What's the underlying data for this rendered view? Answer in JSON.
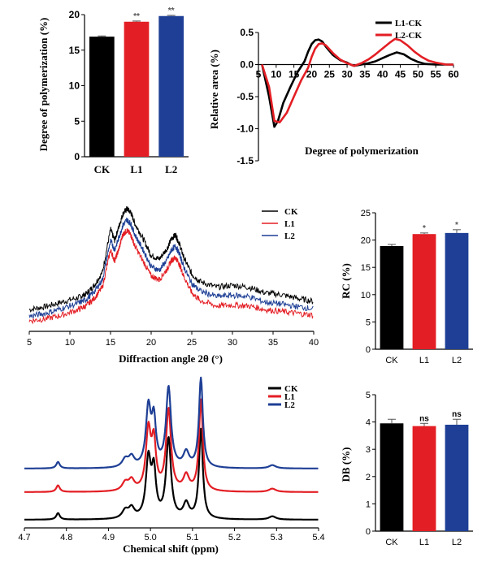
{
  "colors": {
    "CK": "#000000",
    "L1": "#e31e24",
    "L2": "#1e3f95"
  },
  "chart_data": [
    {
      "type": "bar",
      "categories": [
        "CK",
        "L1",
        "L2"
      ],
      "values": [
        16.9,
        19.0,
        19.8
      ],
      "errors": [
        0.1,
        0.1,
        0.1
      ],
      "significance": [
        "",
        "**",
        "**"
      ],
      "ylabel": "Degree of polymerization (%)",
      "ylim": [
        0,
        20
      ],
      "yticks": [
        "0",
        "5",
        "10",
        "15",
        "20"
      ]
    },
    {
      "type": "line",
      "xlabel": "Degree of polymerization",
      "ylabel": "Relative area (%)",
      "xlim": [
        5,
        60
      ],
      "ylim": [
        -1.5,
        0.5
      ],
      "xticks": [
        "5",
        "10",
        "15",
        "20",
        "25",
        "30",
        "35",
        "40",
        "45",
        "50",
        "55",
        "60"
      ],
      "yticks": [
        "0.5",
        "0.0",
        "-0.5",
        "-1.0",
        "-1.5"
      ],
      "legend": "top-right",
      "series": [
        {
          "name": "L1-CK",
          "color": "#000000",
          "x": [
            6,
            8,
            9.5,
            10.5,
            12,
            14,
            16,
            18,
            19,
            20,
            21,
            22,
            23,
            24,
            26,
            28,
            30,
            31,
            32,
            34,
            36,
            38,
            40,
            42,
            44,
            46,
            48,
            50,
            52,
            55,
            58,
            60
          ],
          "y": [
            0.0,
            -0.5,
            -0.97,
            -0.88,
            -0.6,
            -0.35,
            -0.12,
            0.05,
            0.2,
            0.32,
            0.38,
            0.39,
            0.36,
            0.28,
            0.15,
            0.07,
            0.03,
            0.0,
            -0.02,
            0.0,
            0.02,
            0.05,
            0.1,
            0.15,
            0.19,
            0.16,
            0.09,
            0.04,
            0.01,
            0.0,
            0.0,
            0.0
          ]
        },
        {
          "name": "L2-CK",
          "color": "#e31e24",
          "x": [
            6,
            8,
            9.5,
            11,
            13,
            15,
            17,
            19,
            20,
            21,
            22,
            23,
            24,
            26,
            28,
            30,
            31,
            32,
            34,
            36,
            38,
            40,
            42,
            43.5,
            45,
            47,
            49,
            51,
            53,
            55,
            58,
            60
          ],
          "y": [
            0.0,
            -0.35,
            -0.88,
            -0.9,
            -0.75,
            -0.5,
            -0.25,
            -0.05,
            0.12,
            0.25,
            0.32,
            0.33,
            0.3,
            0.18,
            0.08,
            0.02,
            0.0,
            -0.02,
            0.02,
            0.08,
            0.16,
            0.25,
            0.34,
            0.4,
            0.38,
            0.3,
            0.2,
            0.12,
            0.06,
            0.03,
            0.0,
            0.0
          ]
        }
      ]
    },
    {
      "type": "line",
      "xlabel": "Diffraction angle 2θ (°)",
      "xlim": [
        5,
        40
      ],
      "xticks": [
        "5",
        "10",
        "15",
        "20",
        "25",
        "30",
        "35",
        "40"
      ],
      "legend": "top-right",
      "series": [
        {
          "name": "CK",
          "color": "#000000",
          "x": [
            5,
            7,
            9,
            11,
            12,
            13,
            14,
            15,
            15.5,
            16,
            16.5,
            17,
            17.5,
            18,
            19,
            20,
            21,
            22,
            22.5,
            23,
            23.5,
            24,
            25,
            26,
            28,
            30,
            32,
            34,
            36,
            38,
            40
          ],
          "y": [
            0.3,
            0.38,
            0.5,
            0.62,
            0.72,
            0.95,
            1.3,
            2.45,
            2.15,
            2.5,
            2.85,
            3.0,
            2.9,
            2.6,
            2.2,
            1.75,
            1.65,
            1.95,
            2.2,
            2.3,
            2.05,
            1.7,
            1.25,
            1.05,
            0.9,
            0.95,
            0.9,
            0.75,
            0.7,
            0.6,
            0.52
          ]
        },
        {
          "name": "L1",
          "color": "#e31e24",
          "x": [
            5,
            7,
            9,
            11,
            12,
            13,
            14,
            15,
            15.5,
            16,
            16.5,
            17,
            17.5,
            18,
            19,
            20,
            21,
            22,
            22.5,
            23,
            23.5,
            24,
            25,
            26,
            28,
            30,
            32,
            34,
            36,
            38,
            40
          ],
          "y": [
            0.0,
            0.05,
            0.15,
            0.3,
            0.4,
            0.6,
            0.9,
            1.9,
            1.6,
            1.9,
            2.3,
            2.42,
            2.3,
            2.0,
            1.6,
            1.2,
            1.1,
            1.4,
            1.62,
            1.7,
            1.5,
            1.2,
            0.75,
            0.55,
            0.4,
            0.42,
            0.4,
            0.3,
            0.25,
            0.2,
            0.15
          ]
        },
        {
          "name": "L2",
          "color": "#1e3f95",
          "x": [
            5,
            7,
            9,
            11,
            12,
            13,
            14,
            15,
            15.5,
            16,
            16.5,
            17,
            17.5,
            18,
            19,
            20,
            21,
            22,
            22.5,
            23,
            23.5,
            24,
            25,
            26,
            28,
            30,
            32,
            34,
            36,
            38,
            40
          ],
          "y": [
            0.12,
            0.2,
            0.33,
            0.47,
            0.57,
            0.78,
            1.1,
            2.15,
            1.9,
            2.2,
            2.55,
            2.7,
            2.6,
            2.3,
            1.9,
            1.45,
            1.35,
            1.65,
            1.9,
            2.0,
            1.78,
            1.45,
            1.0,
            0.8,
            0.65,
            0.68,
            0.65,
            0.5,
            0.45,
            0.38,
            0.32
          ]
        }
      ]
    },
    {
      "type": "bar",
      "categories": [
        "CK",
        "L1",
        "L2"
      ],
      "values": [
        18.9,
        21.1,
        21.3
      ],
      "errors": [
        0.3,
        0.2,
        0.6
      ],
      "significance": [
        "",
        "*",
        "*"
      ],
      "ylabel": "RC (%)",
      "ylim": [
        0,
        25
      ],
      "yticks": [
        "0",
        "5",
        "10",
        "15",
        "20",
        "25"
      ]
    },
    {
      "type": "line",
      "xlabel": "Chemical shift (ppm)",
      "xlim": [
        4.7,
        5.4
      ],
      "reversed_x": true,
      "xticks": [
        "4.7",
        "4.8",
        "4.9",
        "5.0",
        "5.1",
        "5.2",
        "5.3",
        "5.4"
      ],
      "legend": "top-right",
      "series": [
        {
          "name": "CK",
          "color": "#000000"
        },
        {
          "name": "L1",
          "color": "#e31e24"
        },
        {
          "name": "L2",
          "color": "#1e3f95"
        }
      ]
    },
    {
      "type": "bar",
      "categories": [
        "CK",
        "L1",
        "L2"
      ],
      "values": [
        3.95,
        3.85,
        3.9
      ],
      "errors": [
        0.15,
        0.1,
        0.2
      ],
      "significance": [
        "",
        "ns",
        "ns"
      ],
      "ylabel": "DB (%)",
      "ylim": [
        0,
        5
      ],
      "yticks": [
        "0",
        "1",
        "2",
        "3",
        "4",
        "5"
      ]
    }
  ]
}
